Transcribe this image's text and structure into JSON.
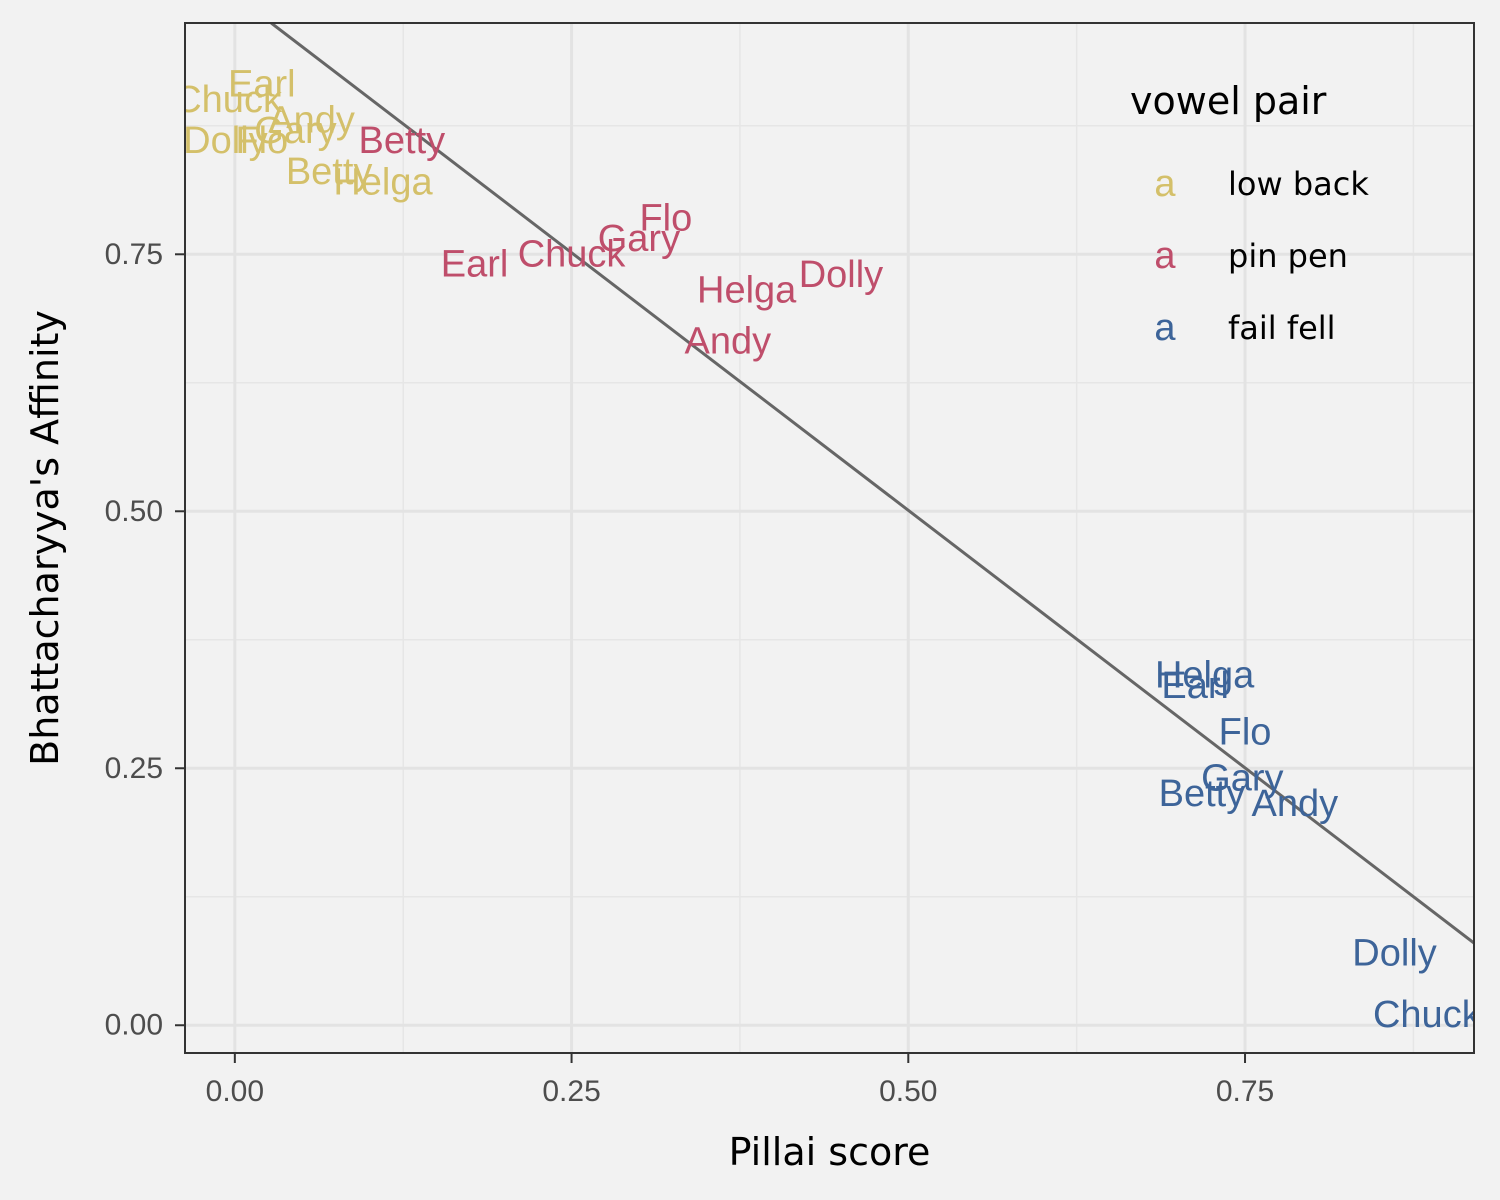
{
  "chart_data": {
    "type": "scatter",
    "title": "",
    "xlabel": "Pillai score",
    "ylabel": "Bhattacharyya's Affinity",
    "xlim": [
      -0.037,
      0.92
    ],
    "ylim": [
      -0.027,
      0.975
    ],
    "x_ticks": [
      0.0,
      0.25,
      0.5,
      0.75
    ],
    "x_tick_labels": [
      "0.00",
      "0.25",
      "0.50",
      "0.75"
    ],
    "y_ticks": [
      0.0,
      0.25,
      0.5,
      0.75
    ],
    "y_tick_labels": [
      "0.00",
      "0.25",
      "0.50",
      "0.75"
    ],
    "grid": true,
    "legend": {
      "title": "vowel pair",
      "position": "top-right",
      "key_glyph": "a"
    },
    "trend_line": {
      "x": [
        0.027,
        0.92
      ],
      "y": [
        0.975,
        0.08
      ]
    },
    "series": [
      {
        "name": "low back",
        "color": "#D4C06A",
        "points": [
          {
            "label": "Earl",
            "x": 0.02,
            "y": 0.915
          },
          {
            "label": "Chuck",
            "x": -0.005,
            "y": 0.9
          },
          {
            "label": "Andy",
            "x": 0.057,
            "y": 0.88
          },
          {
            "label": "Gary",
            "x": 0.045,
            "y": 0.87
          },
          {
            "label": "Dolly",
            "x": -0.007,
            "y": 0.86
          },
          {
            "label": "Flo",
            "x": 0.02,
            "y": 0.86
          },
          {
            "label": "Betty",
            "x": 0.07,
            "y": 0.83
          },
          {
            "label": "Helga",
            "x": 0.11,
            "y": 0.82
          }
        ]
      },
      {
        "name": "pin pen",
        "color": "#BF4E6B",
        "points": [
          {
            "label": "Betty",
            "x": 0.124,
            "y": 0.86
          },
          {
            "label": "Flo",
            "x": 0.32,
            "y": 0.785
          },
          {
            "label": "Gary",
            "x": 0.3,
            "y": 0.765
          },
          {
            "label": "Chuck",
            "x": 0.25,
            "y": 0.75
          },
          {
            "label": "Earl",
            "x": 0.178,
            "y": 0.74
          },
          {
            "label": "Dolly",
            "x": 0.45,
            "y": 0.73
          },
          {
            "label": "Helga",
            "x": 0.38,
            "y": 0.715
          },
          {
            "label": "Andy",
            "x": 0.366,
            "y": 0.665
          }
        ]
      },
      {
        "name": "fail fell",
        "color": "#3D6499",
        "points": [
          {
            "label": "Helga",
            "x": 0.72,
            "y": 0.34
          },
          {
            "label": "Earl",
            "x": 0.713,
            "y": 0.33
          },
          {
            "label": "Flo",
            "x": 0.75,
            "y": 0.285
          },
          {
            "label": "Gary",
            "x": 0.748,
            "y": 0.24
          },
          {
            "label": "Betty",
            "x": 0.718,
            "y": 0.225
          },
          {
            "label": "Andy",
            "x": 0.787,
            "y": 0.215
          },
          {
            "label": "Dolly",
            "x": 0.861,
            "y": 0.07
          },
          {
            "label": "Chuck",
            "x": 0.885,
            "y": 0.01
          }
        ]
      }
    ]
  }
}
